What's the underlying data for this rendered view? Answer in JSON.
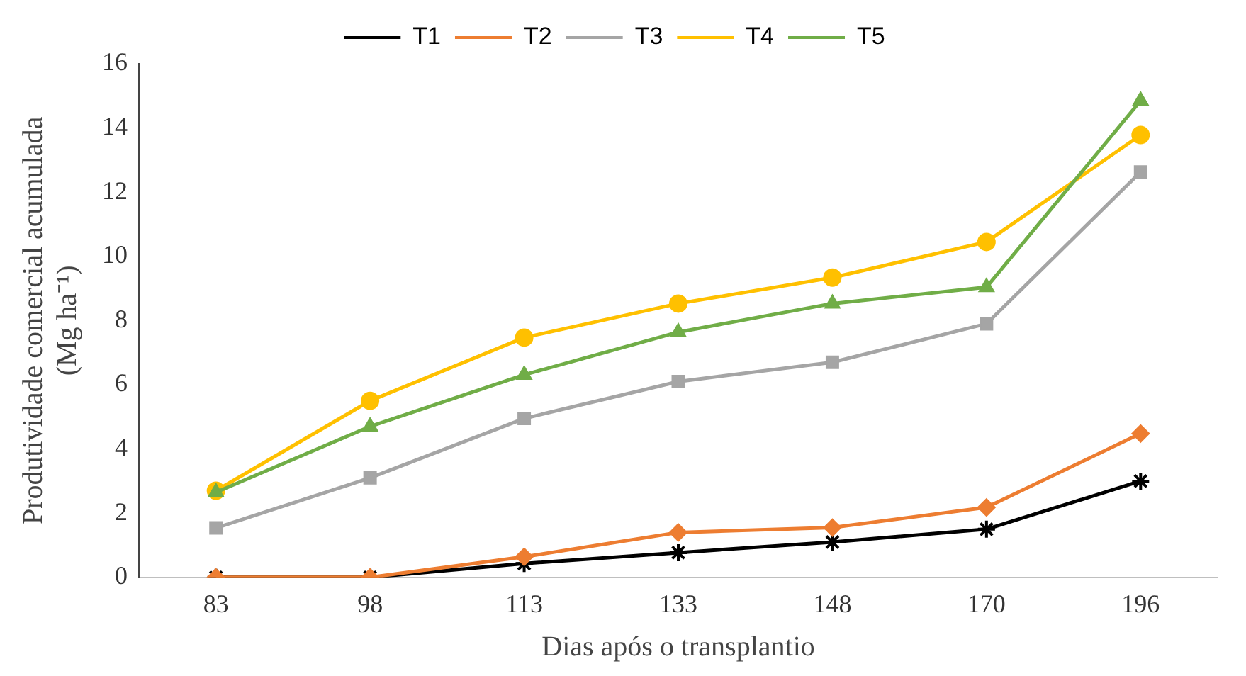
{
  "chart_data": {
    "type": "line",
    "xlabel": "Dias após o transplantio",
    "ylabel": "Produtividade comercial acumulada\n(Mg ha⁻¹)",
    "categories": [
      "83",
      "98",
      "113",
      "133",
      "148",
      "170",
      "196"
    ],
    "series": [
      {
        "name": "T1",
        "color": "#000000",
        "marker": "cross",
        "values": [
          0,
          0,
          0.43,
          0.77,
          1.1,
          1.5,
          3.0
        ]
      },
      {
        "name": "T2",
        "color": "#ed7d31",
        "marker": "diamond",
        "values": [
          0,
          0,
          0.64,
          1.4,
          1.55,
          2.18,
          4.48
        ]
      },
      {
        "name": "T3",
        "color": "#a5a5a5",
        "marker": "square",
        "values": [
          1.54,
          3.1,
          4.95,
          6.1,
          6.7,
          7.9,
          12.63
        ]
      },
      {
        "name": "T4",
        "color": "#ffc000",
        "marker": "circle",
        "values": [
          2.7,
          5.5,
          7.47,
          8.53,
          9.34,
          10.45,
          13.78
        ]
      },
      {
        "name": "T5",
        "color": "#70ad47",
        "marker": "triangle",
        "values": [
          2.65,
          4.7,
          6.31,
          7.64,
          8.53,
          9.04,
          14.85
        ]
      }
    ],
    "ylim": [
      0,
      16
    ],
    "yticks": [
      0,
      2,
      4,
      6,
      8,
      10,
      12,
      14,
      16
    ],
    "grid": false,
    "legend": "top",
    "line_style": "solid"
  }
}
